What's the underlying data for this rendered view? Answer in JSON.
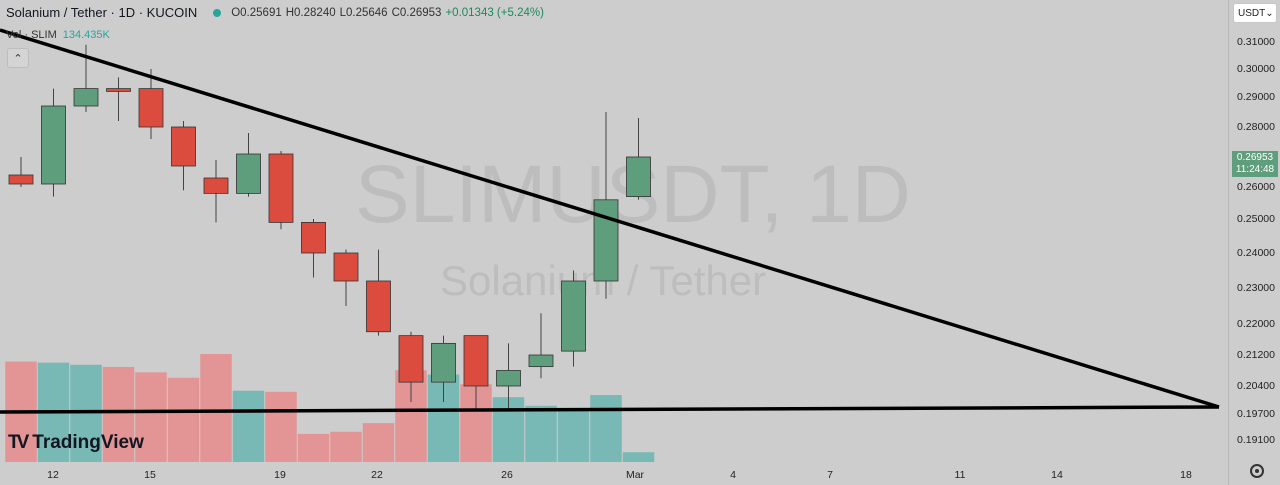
{
  "header": {
    "symbol_title": "Solanium / Tether · 1D · KUCOIN",
    "open": "O0.25691",
    "high": "H0.28240",
    "low": "L0.25646",
    "close": "C0.26953",
    "change": "+0.01343 (+5.24%)"
  },
  "volume_legend": {
    "label": "Vol · SLIM",
    "value": "134.435K"
  },
  "currency": "USDT",
  "last_price": {
    "price": "0.26953",
    "countdown": "11:24:48"
  },
  "watermark": {
    "ticker": "SLIMUSDT, 1D",
    "name": "Solanium / Tether"
  },
  "logo_text": "TradingView",
  "colors": {
    "up": "#5f9e7c",
    "down": "#db4c3f",
    "vol_up": "#78b8b5",
    "vol_down": "#e39494",
    "trendline": "#000000"
  },
  "chart_data": {
    "type": "candlestick",
    "y_ticks": [
      "0.31000",
      "0.30000",
      "0.29000",
      "0.28000",
      "0.26000",
      "0.25000",
      "0.24000",
      "0.23000",
      "0.22000",
      "0.21200",
      "0.20400",
      "0.19700",
      "0.19100"
    ],
    "x_ticks": [
      "12",
      "15",
      "19",
      "22",
      "26",
      "Mar",
      "4",
      "7",
      "11",
      "14",
      "18"
    ],
    "candles": [
      {
        "o": 0.264,
        "h": 0.27,
        "l": 0.26,
        "c": 0.261,
        "v": 0.93
      },
      {
        "o": 0.261,
        "h": 0.293,
        "l": 0.257,
        "c": 0.287,
        "v": 0.92
      },
      {
        "o": 0.287,
        "h": 0.309,
        "l": 0.285,
        "c": 0.293,
        "v": 0.9
      },
      {
        "o": 0.293,
        "h": 0.297,
        "l": 0.282,
        "c": 0.292,
        "v": 0.88
      },
      {
        "o": 0.293,
        "h": 0.3,
        "l": 0.276,
        "c": 0.28,
        "v": 0.83
      },
      {
        "o": 0.28,
        "h": 0.282,
        "l": 0.259,
        "c": 0.267,
        "v": 0.78
      },
      {
        "o": 0.263,
        "h": 0.269,
        "l": 0.249,
        "c": 0.258,
        "v": 1.0
      },
      {
        "o": 0.258,
        "h": 0.278,
        "l": 0.257,
        "c": 0.271,
        "v": 0.66
      },
      {
        "o": 0.271,
        "h": 0.272,
        "l": 0.247,
        "c": 0.249,
        "v": 0.65
      },
      {
        "o": 0.249,
        "h": 0.25,
        "l": 0.233,
        "c": 0.24,
        "v": 0.26
      },
      {
        "o": 0.24,
        "h": 0.241,
        "l": 0.225,
        "c": 0.232,
        "v": 0.28
      },
      {
        "o": 0.232,
        "h": 0.241,
        "l": 0.217,
        "c": 0.218,
        "v": 0.36
      },
      {
        "o": 0.217,
        "h": 0.218,
        "l": 0.2,
        "c": 0.205,
        "v": 0.85
      },
      {
        "o": 0.205,
        "h": 0.217,
        "l": 0.2,
        "c": 0.215,
        "v": 0.81
      },
      {
        "o": 0.217,
        "h": 0.217,
        "l": 0.198,
        "c": 0.204,
        "v": 0.72
      },
      {
        "o": 0.204,
        "h": 0.215,
        "l": 0.198,
        "c": 0.208,
        "v": 0.6
      },
      {
        "o": 0.209,
        "h": 0.223,
        "l": 0.206,
        "c": 0.212,
        "v": 0.52
      },
      {
        "o": 0.213,
        "h": 0.235,
        "l": 0.209,
        "c": 0.232,
        "v": 0.49
      },
      {
        "o": 0.232,
        "h": 0.285,
        "l": 0.227,
        "c": 0.256,
        "v": 0.62
      },
      {
        "o": 0.257,
        "h": 0.283,
        "l": 0.256,
        "c": 0.27,
        "v": 0.09
      }
    ]
  }
}
